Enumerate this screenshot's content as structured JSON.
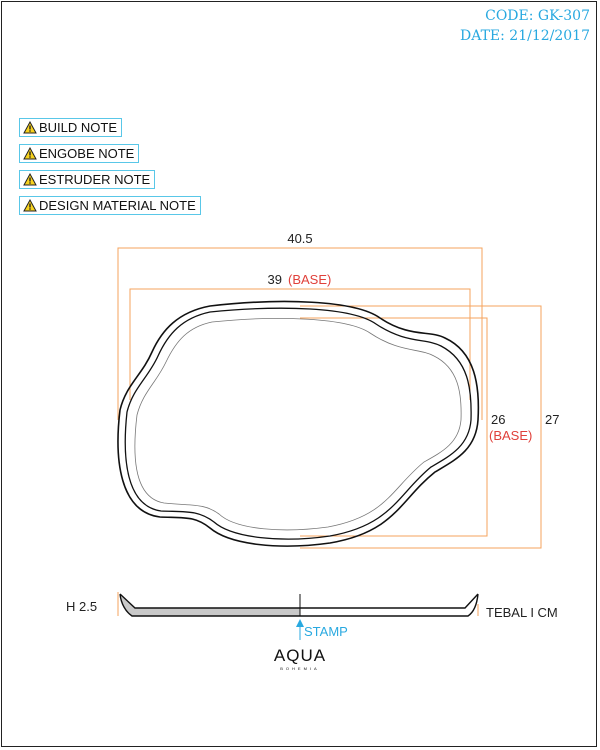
{
  "header": {
    "code": "CODE: GK-307",
    "date": "DATE: 21/12/2017"
  },
  "notes": [
    {
      "label": "BUILD NOTE",
      "icon": "warning-icon"
    },
    {
      "label": "ENGOBE NOTE",
      "icon": "warning-icon"
    },
    {
      "label": "ESTRUDER NOTE",
      "icon": "warning-icon"
    },
    {
      "label": "DESIGN MATERIAL NOTE",
      "icon": "warning-icon"
    }
  ],
  "dimensions": {
    "overall_width": "40.5",
    "base_width": "39",
    "base_width_tag": "(BASE)",
    "base_depth": "26",
    "base_depth_tag": "(BASE)",
    "overall_depth": "27",
    "height": "H 2.5",
    "thickness": "TEBAL I CM",
    "stamp": "STAMP"
  },
  "brand": {
    "name": "AQUA",
    "sub": "BOHEMIA"
  },
  "colors": {
    "accent": "#29a9e0",
    "dimension_line": "#f5a35c",
    "base_text": "#e0403a",
    "outline": "#111111"
  }
}
